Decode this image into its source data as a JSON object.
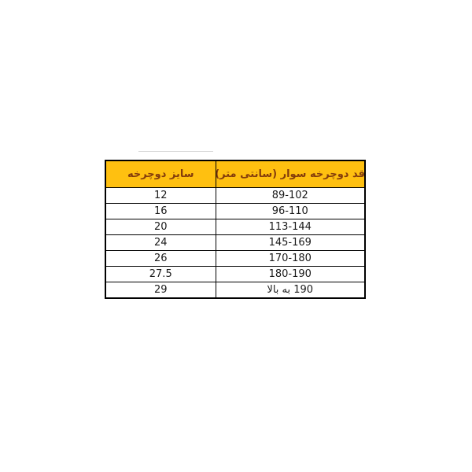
{
  "chart_data": {
    "type": "table",
    "title": "",
    "direction": "rtl",
    "columns": {
      "size": "سایز دوچرخه",
      "height": "قد دوچرخه سوار (سانتی متر)"
    },
    "rows": [
      {
        "size": "12",
        "height": "89-102"
      },
      {
        "size": "16",
        "height": "96-110"
      },
      {
        "size": "20",
        "height": "113-144"
      },
      {
        "size": "24",
        "height": "145-169"
      },
      {
        "size": "26",
        "height": "170-180"
      },
      {
        "size": "27.5",
        "height": "180-190"
      },
      {
        "size": "29",
        "height": "190 به بالا"
      }
    ]
  },
  "colors": {
    "header_bg": "#ffc010",
    "header_text": "#843c0c",
    "border": "#000000",
    "cell_text": "#1a1a1a",
    "artifact_line": "#d9d9d9",
    "page_bg": "#ffffff"
  }
}
